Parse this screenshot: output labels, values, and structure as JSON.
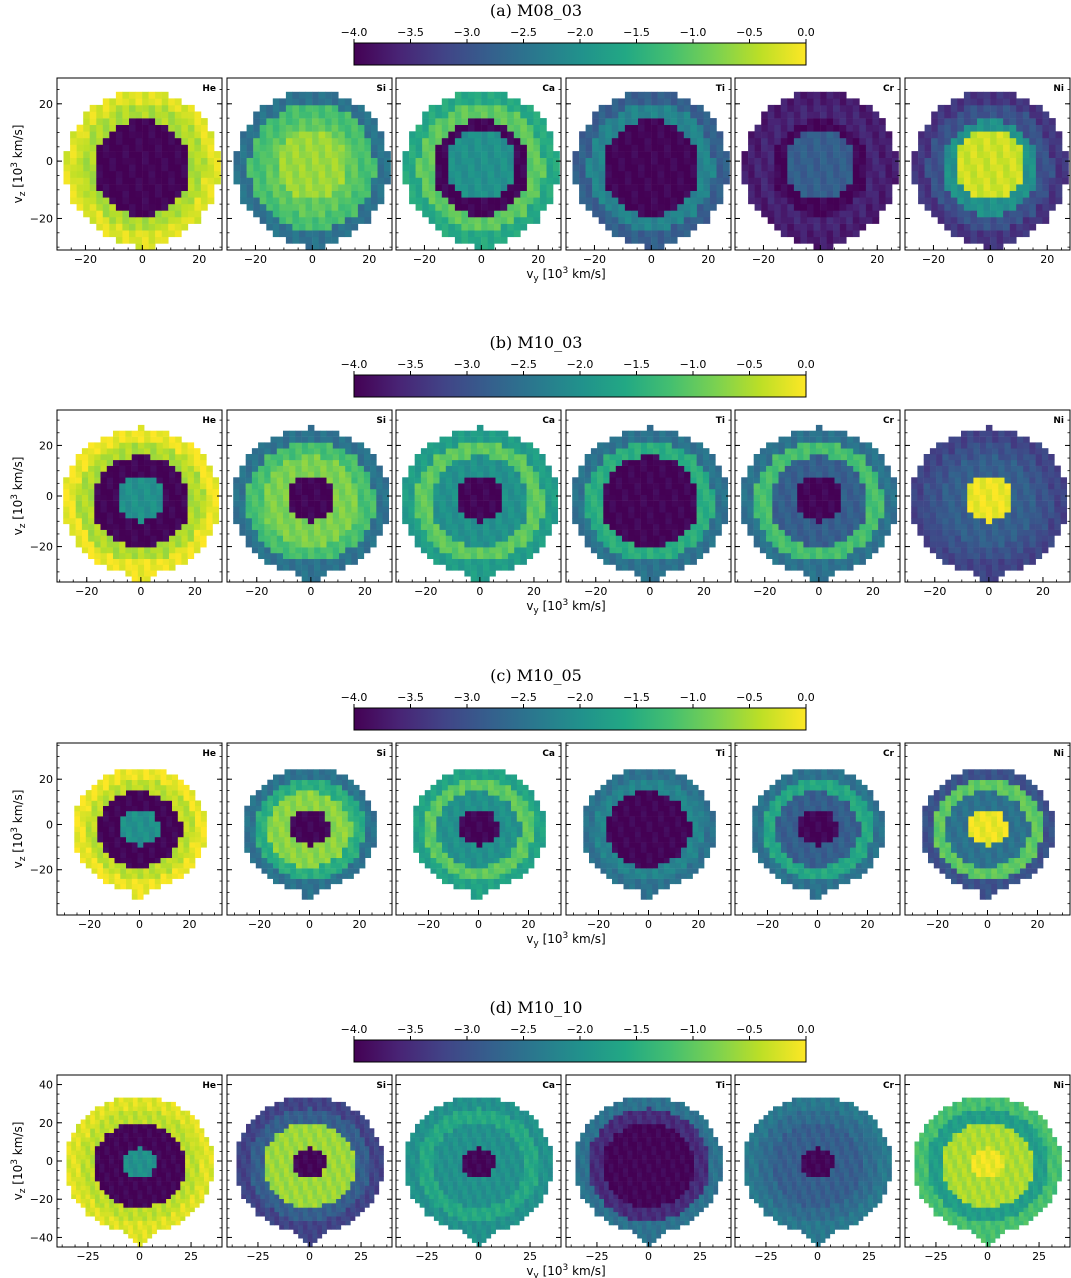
{
  "colorbar": {
    "ticks": [
      "−4.0",
      "−3.5",
      "−3.0",
      "−2.5",
      "−2.0",
      "−1.5",
      "−1.0",
      "−0.5",
      "0.0"
    ],
    "range": [
      -4.0,
      0.0
    ],
    "colormap": [
      "#440154",
      "#482475",
      "#414487",
      "#355f8d",
      "#2a788e",
      "#21918c",
      "#22a884",
      "#44bf70",
      "#7ad151",
      "#bddf26",
      "#fde725"
    ]
  },
  "axes": {
    "ylabel": "v",
    "ylabel_sub": "z",
    "ylabel_rest": " [10",
    "ylabel_sup": "3",
    "ylabel_unit": " km/s]",
    "xlabel": "v",
    "xlabel_sub": "y",
    "xlabel_rest": " [10",
    "xlabel_sup": "3",
    "xlabel_unit": " km/s]"
  },
  "chart_data": [
    {
      "type": "heatmap",
      "title": "(a) M08_03",
      "panels": [
        "He",
        "Si",
        "Ca",
        "Ti",
        "Cr",
        "Ni"
      ],
      "xticks": [
        "−20",
        "0",
        "20"
      ],
      "xtick_values": [
        -20,
        0,
        20
      ],
      "yticks": [
        "20",
        "0",
        "−20"
      ],
      "ytick_values": [
        20,
        0,
        -20
      ],
      "xlim": [
        -30,
        28
      ],
      "ylim": [
        -31,
        29
      ],
      "core_radius": 12,
      "outer_radius": 27,
      "panel_values": {
        "He": {
          "core": -4.0,
          "inner": -4.0,
          "shell": -0.5,
          "outer": -0.2
        },
        "Si": {
          "core": -0.6,
          "inner": -1.0,
          "shell": -1.2,
          "outer": -2.5
        },
        "Ca": {
          "core": -2.0,
          "inner": -4.0,
          "shell": -1.0,
          "outer": -1.6
        },
        "Ti": {
          "core": -4.0,
          "inner": -4.0,
          "shell": -2.2,
          "outer": -2.8
        },
        "Cr": {
          "core": -2.8,
          "inner": -4.0,
          "shell": -3.6,
          "outer": -3.7
        },
        "Ni": {
          "core": -0.3,
          "inner": -2.0,
          "shell": -3.0,
          "outer": -3.4
        }
      }
    },
    {
      "type": "heatmap",
      "title": "(b) M10_03",
      "panels": [
        "He",
        "Si",
        "Ca",
        "Ti",
        "Cr",
        "Ni"
      ],
      "xticks": [
        "−20",
        "0",
        "20"
      ],
      "xtick_values": [
        -20,
        0,
        20
      ],
      "yticks": [
        "20",
        "0",
        "−20"
      ],
      "ytick_values": [
        20,
        0,
        -20
      ],
      "xlim": [
        -31,
        30
      ],
      "ylim": [
        -34,
        34
      ],
      "core_radius": 9,
      "outer_radius": 29,
      "panel_values": {
        "He": {
          "core": -2.0,
          "inner": -4.0,
          "shell": -0.5,
          "outer": -0.1
        },
        "Si": {
          "core": -4.0,
          "inner": -0.8,
          "shell": -1.2,
          "outer": -2.5
        },
        "Ca": {
          "core": -4.0,
          "inner": -2.0,
          "shell": -1.0,
          "outer": -1.8
        },
        "Ti": {
          "core": -4.0,
          "inner": -4.0,
          "shell": -1.5,
          "outer": -2.5
        },
        "Cr": {
          "core": -4.0,
          "inner": -2.8,
          "shell": -1.2,
          "outer": -2.5
        },
        "Ni": {
          "core": -0.1,
          "inner": -2.8,
          "shell": -3.0,
          "outer": -3.2
        }
      }
    },
    {
      "type": "heatmap",
      "title": "(c) M10_05",
      "panels": [
        "He",
        "Si",
        "Ca",
        "Ti",
        "Cr",
        "Ni"
      ],
      "xticks": [
        "−20",
        "0",
        "20"
      ],
      "xtick_values": [
        -20,
        0,
        20
      ],
      "yticks": [
        "20",
        "0",
        "−20"
      ],
      "ytick_values": [
        20,
        0,
        -20
      ],
      "xlim": [
        -33,
        33
      ],
      "ylim": [
        -40,
        36
      ],
      "core_radius": 8,
      "outer_radius": 27,
      "panel_values": {
        "He": {
          "core": -2.0,
          "inner": -4.0,
          "shell": -0.4,
          "outer": -0.1
        },
        "Si": {
          "core": -4.0,
          "inner": -0.7,
          "shell": -1.5,
          "outer": -2.5
        },
        "Ca": {
          "core": -4.0,
          "inner": -2.0,
          "shell": -1.0,
          "outer": -1.7
        },
        "Ti": {
          "core": -4.0,
          "inner": -4.0,
          "shell": -2.2,
          "outer": -2.5
        },
        "Cr": {
          "core": -4.0,
          "inner": -2.8,
          "shell": -1.6,
          "outer": -2.5
        },
        "Ni": {
          "core": -0.1,
          "inner": -2.5,
          "shell": -1.0,
          "outer": -3.0
        }
      }
    },
    {
      "type": "heatmap",
      "title": "(d) M10_10",
      "panels": [
        "He",
        "Si",
        "Ca",
        "Ti",
        "Cr",
        "Ni"
      ],
      "xticks": [
        "−25",
        "0",
        "25"
      ],
      "xtick_values": [
        -25,
        0,
        25
      ],
      "yticks": [
        "40",
        "20",
        "0",
        "−20",
        "−40"
      ],
      "ytick_values": [
        40,
        20,
        0,
        -20,
        -40
      ],
      "xlim": [
        -40,
        40
      ],
      "ylim": [
        -45,
        45
      ],
      "core_radius": 8,
      "outer_radius": 36,
      "panel_values": {
        "He": {
          "core": -2.0,
          "inner": -4.0,
          "shell": -0.4,
          "outer": -0.2
        },
        "Si": {
          "core": -4.0,
          "inner": -0.6,
          "shell": -2.8,
          "outer": -3.2
        },
        "Ca": {
          "core": -4.0,
          "inner": -2.0,
          "shell": -1.6,
          "outer": -2.0
        },
        "Ti": {
          "core": -4.0,
          "inner": -4.0,
          "shell": -3.5,
          "outer": -2.5
        },
        "Cr": {
          "core": -4.0,
          "inner": -2.8,
          "shell": -2.6,
          "outer": -2.4
        },
        "Ni": {
          "core": -0.1,
          "inner": -0.5,
          "shell": -1.8,
          "outer": -1.2
        }
      }
    }
  ]
}
